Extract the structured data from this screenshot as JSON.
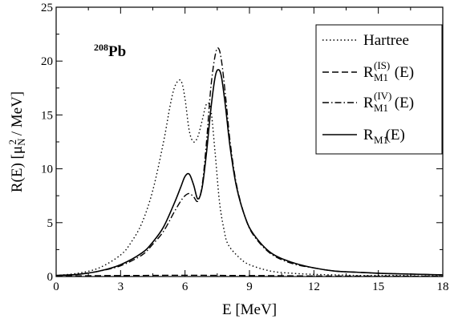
{
  "chart_data": {
    "type": "line",
    "xlabel": "E [MeV]",
    "ylabel": {
      "prefix": "R(E) [μ",
      "sub": "N",
      "sup": "2",
      "suffix": " / MeV]"
    },
    "xlim": [
      0,
      18
    ],
    "ylim": [
      0,
      25
    ],
    "xticks": [
      0,
      3,
      6,
      9,
      12,
      15,
      18
    ],
    "yticks": [
      0,
      5,
      10,
      15,
      20,
      25
    ],
    "annotation": {
      "sup": "208",
      "main": "Pb"
    },
    "legend_position": "top-right",
    "series": [
      {
        "name": "Hartree",
        "legend": {
          "main": "Hartree",
          "sup": "",
          "sub": "",
          "suffix": ""
        },
        "style": "dotted",
        "x": [
          0,
          1,
          2,
          3,
          3.5,
          4,
          4.5,
          5,
          5.3,
          5.5,
          5.7,
          5.85,
          6.0,
          6.2,
          6.4,
          6.6,
          6.8,
          7.0,
          7.2,
          7.4,
          7.6,
          7.8,
          8.0,
          8.5,
          9,
          10,
          11,
          12,
          13,
          14,
          15,
          16,
          17,
          18
        ],
        "y": [
          0.1,
          0.3,
          0.8,
          2.0,
          3.2,
          5.0,
          8.0,
          12.5,
          15.8,
          17.5,
          18.2,
          18.0,
          16.5,
          13.5,
          12.5,
          13.0,
          14.5,
          16.0,
          15.5,
          11.5,
          7.0,
          4.5,
          3.0,
          1.8,
          1.1,
          0.5,
          0.3,
          0.2,
          0.15,
          0.1,
          0.1,
          0.1,
          0.05,
          0.05
        ]
      },
      {
        "name": "R_M1^(IS)(E)",
        "legend": {
          "main": "R",
          "sup": "(IS)",
          "sub": "M1",
          "suffix": "(E)"
        },
        "style": "dashed",
        "x": [
          0,
          2,
          4,
          6,
          8,
          10,
          12,
          14,
          16,
          18
        ],
        "y": [
          0.05,
          0.08,
          0.1,
          0.12,
          0.1,
          0.08,
          0.05,
          0.04,
          0.03,
          0.02
        ]
      },
      {
        "name": "R_M1^(IV)(E)",
        "legend": {
          "main": "R",
          "sup": "(IV)",
          "sub": "M1",
          "suffix": "(E)"
        },
        "style": "dashdot",
        "x": [
          0,
          1,
          2,
          3,
          4,
          4.5,
          5,
          5.5,
          5.8,
          6.0,
          6.2,
          6.4,
          6.6,
          6.8,
          7.0,
          7.2,
          7.4,
          7.55,
          7.7,
          7.9,
          8.1,
          8.4,
          8.8,
          9.2,
          10,
          11,
          12,
          13,
          14,
          15,
          16,
          17,
          18
        ],
        "y": [
          0.1,
          0.2,
          0.5,
          1.0,
          2.0,
          3.0,
          4.2,
          6.0,
          7.0,
          7.5,
          7.7,
          7.4,
          7.0,
          8.5,
          12.5,
          17.5,
          20.5,
          21.2,
          20.0,
          16.5,
          12.5,
          8.5,
          5.5,
          3.8,
          2.1,
          1.2,
          0.8,
          0.5,
          0.4,
          0.3,
          0.25,
          0.2,
          0.15
        ]
      },
      {
        "name": "R_M1(E)",
        "legend": {
          "main": "R",
          "sup": "",
          "sub": "M1",
          "suffix": "(E)"
        },
        "style": "solid",
        "x": [
          0,
          1,
          2,
          3,
          4,
          4.5,
          5,
          5.5,
          5.8,
          6.0,
          6.2,
          6.4,
          6.6,
          6.8,
          7.0,
          7.2,
          7.4,
          7.55,
          7.7,
          7.9,
          8.1,
          8.4,
          8.8,
          9.2,
          10,
          11,
          12,
          13,
          14,
          15,
          16,
          17,
          18
        ],
        "y": [
          0.1,
          0.2,
          0.5,
          1.1,
          2.2,
          3.2,
          4.6,
          6.8,
          8.3,
          9.3,
          9.5,
          8.5,
          7.2,
          8.3,
          11.5,
          15.5,
          18.5,
          19.2,
          18.5,
          15.5,
          12.0,
          8.3,
          5.5,
          3.9,
          2.2,
          1.3,
          0.8,
          0.5,
          0.4,
          0.3,
          0.25,
          0.2,
          0.15
        ]
      }
    ]
  }
}
